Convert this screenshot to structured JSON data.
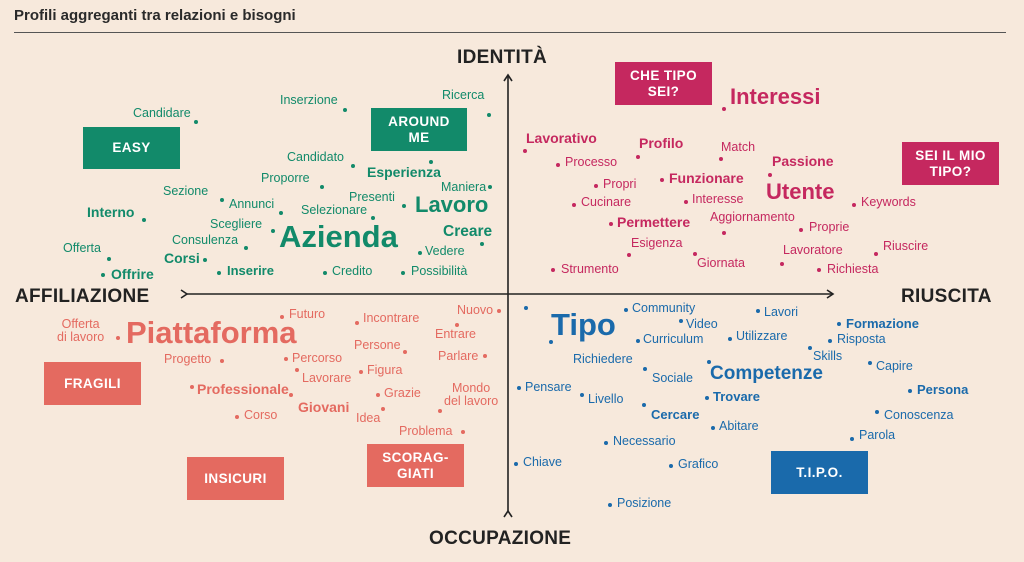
{
  "title": "Profili aggreganti tra relazioni e bisogni",
  "axes": {
    "top": "IDENTITÀ",
    "bottom": "OCCUPAZIONE",
    "left": "AFFILIAZIONE",
    "right": "RIUSCITA"
  },
  "boxes": {
    "easy": "EASY",
    "around_me": "AROUND\nME",
    "che_tipo_sei": "CHE TIPO\nSEI?",
    "sei_il_mio_tipo": "SEI IL MIO\nTIPO?",
    "fragili": "FRAGILI",
    "insicuri": "INSICURI",
    "scoraggiati": "SCORAG-\nGIATI",
    "tipo": "T.I.P.O."
  },
  "colors": {
    "green": "#128a6a",
    "magenta": "#c5285f",
    "red": "#e46a60",
    "blue": "#1a6aab"
  },
  "words": {
    "green": [
      "Candidare",
      "Inserzione",
      "Ricerca",
      "Candidato",
      "Esperienza",
      "Proporre",
      "Maniera",
      "Sezione",
      "Annunci",
      "Presenti",
      "Selezionare",
      "Lavoro",
      "Interno",
      "Scegliere",
      "Creare",
      "Consulenza",
      "Azienda",
      "Offerta",
      "Corsi",
      "Vedere",
      "Offrire",
      "Inserire",
      "Credito",
      "Possibilità"
    ],
    "magenta": [
      "Interessi",
      "Lavorativo",
      "Profilo",
      "Match",
      "Processo",
      "Passione",
      "Funzionare",
      "Propri",
      "Utente",
      "Cucinare",
      "Interesse",
      "Keywords",
      "Permettere",
      "Aggiornamento",
      "Proprie",
      "Esigenza",
      "Lavoratore",
      "Riuscire",
      "Strumento",
      "Giornata",
      "Richiesta"
    ],
    "red": [
      "Futuro",
      "Nuovo",
      "Offerta\ndi lavoro",
      "Piattaforma",
      "Incontrare",
      "Entrare",
      "Persone",
      "Progetto",
      "Percorso",
      "Parlare",
      "Figura",
      "Lavorare",
      "Mondo\ndel lavoro",
      "Professionale",
      "Grazie",
      "Giovani",
      "Corso",
      "Idea",
      "Problema"
    ],
    "blue": [
      "Community",
      "Lavori",
      "Tipo",
      "Video",
      "Formazione",
      "Curriculum",
      "Utilizzare",
      "Risposta",
      "Richiedere",
      "Skills",
      "Capire",
      "Competenze",
      "Sociale",
      "Pensare",
      "Persona",
      "Livello",
      "Trovare",
      "Cercare",
      "Conoscenza",
      "Abitare",
      "Parola",
      "Necessario",
      "Chiave",
      "Grafico",
      "Posizione"
    ]
  }
}
